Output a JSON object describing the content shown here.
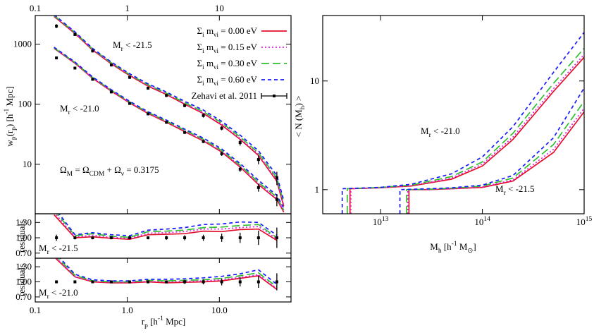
{
  "chart_data": [
    {
      "type": "line",
      "xlog": true,
      "ylog": true,
      "xlim": [
        0.1,
        60
      ],
      "ylim": [
        1.5,
        3000
      ],
      "xticks": [
        {
          "value": 0.1,
          "label": "0.1"
        },
        1,
        10
      ],
      "xticks_side": "top",
      "yticks": [
        10,
        100,
        1000
      ],
      "ylabel": "w_p(r_p) [h^{-1} Mpc]",
      "legend": "upper right",
      "x": [
        0.16,
        0.27,
        0.42,
        0.67,
        1.06,
        1.68,
        2.66,
        4.2,
        6.7,
        10.6,
        16.8,
        26.6,
        42.1,
        50
      ],
      "series": [
        {
          "name": "Σ_i m_{ν_i} = 0.00 eV",
          "color": "#e3102c",
          "dash": "solid",
          "samples": [
            {
              "values": [
                2900,
                1500,
                800,
                470,
                300,
                200,
                145,
                100,
                70,
                45,
                26,
                14,
                5.2,
                2.0
              ]
            },
            {
              "values": [
                850,
                480,
                270,
                165,
                105,
                70,
                50,
                35,
                24.5,
                16,
                9,
                4.6,
                2.6,
                1.6
              ]
            }
          ]
        },
        {
          "name": "Σ_i m_{ν_i} = 0.15 eV",
          "color": "#e020e0",
          "dash": "dotted",
          "samples": [
            {
              "values": [
                2950,
                1530,
                815,
                480,
                306,
                205,
                149,
                103,
                72,
                47,
                27,
                14.7,
                5.5,
                2.1
              ]
            },
            {
              "values": [
                860,
                487,
                274,
                168,
                107,
                71.5,
                51,
                36,
                25.2,
                16.5,
                9.3,
                4.8,
                2.7,
                1.65
              ]
            }
          ]
        },
        {
          "name": "Σ_i m_{ν_i} = 0.30 eV",
          "color": "#2fc02f",
          "dash": "dashed",
          "samples": [
            {
              "values": [
                3000,
                1560,
                830,
                490,
                312,
                210,
                153,
                106,
                75,
                49,
                28.5,
                15.5,
                5.9,
                2.3
              ]
            },
            {
              "values": [
                870,
                495,
                279,
                171,
                109,
                73,
                52.5,
                37,
                26,
                17,
                9.7,
                5,
                2.85,
                1.72
              ]
            }
          ]
        },
        {
          "name": "Σ_i m_{ν_i} = 0.60 eV",
          "color": "#1a1aff",
          "dash": "shortdash",
          "samples": [
            {
              "values": [
                3100,
                1600,
                850,
                505,
                322,
                218,
                160,
                112,
                80,
                52,
                30.5,
                16.8,
                6.5,
                2.5
              ]
            },
            {
              "values": [
                890,
                505,
                285,
                175,
                112,
                75,
                54.5,
                38.5,
                27.3,
                18,
                10.3,
                5.4,
                3.05,
                1.85
              ]
            }
          ]
        }
      ],
      "observations": {
        "name": "Zehavi et al. 2011",
        "color": "#000000",
        "x": [
          0.17,
          0.27,
          0.42,
          0.67,
          1.06,
          1.68,
          2.66,
          4.2,
          6.7,
          10.6,
          16.8,
          26.6,
          42.1
        ],
        "samples": [
          {
            "values": [
              2000,
              1450,
              770,
              450,
              280,
              185,
              140,
              95,
              65,
              40,
              23,
              12,
              6.0
            ],
            "errors": [
              150,
              80,
              40,
              25,
              15,
              10,
              8,
              6,
              5,
              3,
              2.5,
              2,
              1.5
            ]
          },
          {
            "values": [
              590,
              400,
              260,
              160,
              103,
              69,
              50,
              34,
              24,
              15,
              8.3,
              4.1,
              2.6
            ],
            "errors": [
              30,
              20,
              12,
              8,
              5,
              3.5,
              2.5,
              2,
              1.5,
              1.2,
              0.8,
              0.6,
              0.6
            ]
          }
        ]
      },
      "annotations": [
        "M_r < -21.5",
        "M_r < -21.0",
        "Ω_M = Ω_{CDM} + Ω_ν = 0.3175"
      ]
    },
    {
      "type": "line",
      "xlog": true,
      "ylog": false,
      "xlim": [
        0.1,
        60
      ],
      "ylim": [
        0.6,
        1.47
      ],
      "yticks": [
        {
          "value": 1.3,
          "label": "1.30"
        },
        {
          "value": 1.0,
          "label": "1.00"
        },
        {
          "value": 0.7,
          "label": "0.70"
        }
      ],
      "ylabel": "residuals",
      "x": [
        0.16,
        0.27,
        0.42,
        0.67,
        1.06,
        1.68,
        2.66,
        4.2,
        6.7,
        10.6,
        16.8,
        26.6,
        42.1
      ],
      "series": [
        {
          "color": "#e3102c",
          "dash": "solid",
          "samples": [
            {
              "values": [
                1.45,
                1.0,
                1.02,
                0.99,
                0.97,
                1.06,
                1.07,
                1.08,
                1.13,
                1.12,
                1.16,
                1.17,
                0.95
              ]
            }
          ]
        },
        {
          "color": "#e020e0",
          "dash": "dotted",
          "samples": [
            {
              "values": [
                1.5,
                1.02,
                1.05,
                1.01,
                0.99,
                1.09,
                1.1,
                1.12,
                1.17,
                1.17,
                1.2,
                1.22,
                0.98
              ]
            }
          ]
        },
        {
          "color": "#2fc02f",
          "dash": "dashed",
          "samples": [
            {
              "values": [
                1.55,
                1.04,
                1.08,
                1.03,
                1.01,
                1.12,
                1.13,
                1.15,
                1.2,
                1.21,
                1.24,
                1.26,
                1.0
              ]
            }
          ]
        },
        {
          "color": "#1a1aff",
          "dash": "shortdash",
          "samples": [
            {
              "values": [
                1.6,
                1.06,
                1.1,
                1.06,
                1.04,
                1.15,
                1.17,
                1.2,
                1.26,
                1.27,
                1.31,
                1.3,
                1.05
              ]
            }
          ]
        }
      ],
      "observations": {
        "color": "#000000",
        "x": [
          0.17,
          0.27,
          0.42,
          0.67,
          1.06,
          1.68,
          2.66,
          4.2,
          6.7,
          10.6,
          16.8,
          26.6,
          42.1
        ],
        "samples": [
          {
            "values": [
              1,
              1,
              1,
              1,
              1,
              1,
              1,
              1,
              1,
              1,
              1,
              1,
              1
            ],
            "errors": [
              0.06,
              0.03,
              0.03,
              0.03,
              0.03,
              0.03,
              0.04,
              0.05,
              0.06,
              0.08,
              0.1,
              0.14,
              0.2
            ]
          }
        ]
      },
      "annotations": [
        "M_r < -21.5"
      ]
    },
    {
      "type": "line",
      "xlog": true,
      "ylog": false,
      "xlim": [
        0.1,
        60
      ],
      "ylim": [
        0.6,
        1.47
      ],
      "xticks": [
        {
          "value": 0.1,
          "label": "0.1"
        },
        {
          "value": 1,
          "label": "1.0"
        },
        {
          "value": 10,
          "label": "10.0"
        }
      ],
      "xticks_side": "bottom",
      "yticks": [
        {
          "value": 1.3,
          "label": "1.30"
        },
        {
          "value": 1.0,
          "label": "1.00"
        },
        {
          "value": 0.7,
          "label": "0.70"
        }
      ],
      "ylabel": "residuals",
      "xlabel": "r_p [h^{-1} Mpc]",
      "x": [
        0.16,
        0.27,
        0.42,
        0.67,
        1.06,
        1.68,
        2.66,
        4.2,
        6.7,
        10.6,
        16.8,
        26.6,
        42.1
      ],
      "series": [
        {
          "color": "#e3102c",
          "dash": "solid",
          "samples": [
            {
              "values": [
                1.5,
                1.1,
                1.0,
                0.98,
                0.98,
                1.0,
                0.98,
                0.99,
                1.0,
                1.02,
                1.07,
                1.12,
                0.85
              ]
            }
          ]
        },
        {
          "color": "#e020e0",
          "dash": "dotted",
          "samples": [
            {
              "values": [
                1.52,
                1.11,
                1.01,
                0.99,
                0.99,
                1.01,
                1.0,
                1.01,
                1.02,
                1.04,
                1.09,
                1.14,
                0.87
              ]
            }
          ]
        },
        {
          "color": "#2fc02f",
          "dash": "dashed",
          "samples": [
            {
              "values": [
                1.55,
                1.13,
                1.02,
                1.0,
                1.0,
                1.03,
                1.02,
                1.03,
                1.04,
                1.07,
                1.12,
                1.18,
                0.9
              ]
            }
          ]
        },
        {
          "color": "#1a1aff",
          "dash": "shortdash",
          "samples": [
            {
              "values": [
                1.6,
                1.15,
                1.04,
                1.02,
                1.02,
                1.05,
                1.05,
                1.06,
                1.08,
                1.11,
                1.16,
                1.24,
                0.95
              ]
            }
          ]
        }
      ],
      "observations": {
        "color": "#000000",
        "x": [
          0.17,
          0.27,
          0.42,
          0.67,
          1.06,
          1.68,
          2.66,
          4.2,
          6.7,
          10.6,
          16.8,
          26.6,
          42.1
        ],
        "samples": [
          {
            "values": [
              1,
              1,
              1,
              1,
              1,
              1,
              1,
              1,
              1,
              1,
              1,
              1,
              1
            ],
            "errors": [
              0.03,
              0.03,
              0.02,
              0.02,
              0.02,
              0.03,
              0.03,
              0.04,
              0.05,
              0.07,
              0.09,
              0.12,
              0.17
            ]
          }
        ]
      },
      "annotations": [
        "M_r < -21.0"
      ]
    },
    {
      "type": "line",
      "xlog": true,
      "ylog": true,
      "xlim": [
        2700000000000.0,
        1000000000000000.0
      ],
      "ylim": [
        0.6,
        40
      ],
      "xticks": [
        {
          "value": 10000000000000.0,
          "label": "10^{13}"
        },
        {
          "value": 100000000000000.0,
          "label": "10^{14}"
        },
        {
          "value": 1000000000000000.0,
          "label": "10^{15}"
        }
      ],
      "xticks_side": "bottom",
      "yticks": [
        1,
        10
      ],
      "ylabel": "< N (M_h) >",
      "xlabel": "M_h [h^{-1} M_⊙]",
      "series": [
        {
          "color": "#e3102c",
          "dash": "solid",
          "samples": [
            {
              "x": [
                5000000000000.0,
                5000000000000.0,
                10000000000000.0,
                20000000000000.0,
                50000000000000.0,
                100000000000000.0,
                200000000000000.0,
                500000000000000.0,
                1000000000000000.0
              ],
              "values": [
                0.6,
                1.02,
                1.04,
                1.08,
                1.25,
                1.65,
                2.9,
                8.0,
                16.5
              ]
            },
            {
              "x": [
                19000000000000.0,
                19000000000000.0,
                30000000000000.0,
                50000000000000.0,
                100000000000000.0,
                200000000000000.0,
                500000000000000.0,
                1000000000000000.0
              ],
              "values": [
                0.6,
                1.0,
                1.0,
                1.02,
                1.05,
                1.2,
                2.2,
                5.2
              ]
            }
          ]
        },
        {
          "color": "#e020e0",
          "dash": "dotted",
          "samples": [
            {
              "x": [
                5100000000000.0,
                5100000000000.0,
                10000000000000.0,
                20000000000000.0,
                50000000000000.0,
                100000000000000.0,
                200000000000000.0,
                500000000000000.0,
                1000000000000000.0
              ],
              "values": [
                0.6,
                1.02,
                1.04,
                1.09,
                1.28,
                1.72,
                3.05,
                8.5,
                17.5
              ]
            },
            {
              "x": [
                18500000000000.0,
                18500000000000.0,
                30000000000000.0,
                50000000000000.0,
                100000000000000.0,
                200000000000000.0,
                500000000000000.0,
                1000000000000000.0
              ],
              "values": [
                0.6,
                1.0,
                1.0,
                1.02,
                1.06,
                1.23,
                2.35,
                5.6
              ]
            }
          ]
        },
        {
          "color": "#2fc02f",
          "dash": "dashed",
          "samples": [
            {
              "x": [
                4700000000000.0,
                4700000000000.0,
                10000000000000.0,
                20000000000000.0,
                50000000000000.0,
                100000000000000.0,
                200000000000000.0,
                500000000000000.0,
                1000000000000000.0
              ],
              "values": [
                0.6,
                1.02,
                1.05,
                1.1,
                1.32,
                1.8,
                3.3,
                9.5,
                20
              ]
            },
            {
              "x": [
                18000000000000.0,
                18000000000000.0,
                30000000000000.0,
                50000000000000.0,
                100000000000000.0,
                200000000000000.0,
                500000000000000.0,
                1000000000000000.0
              ],
              "values": [
                0.6,
                1.0,
                1.01,
                1.03,
                1.08,
                1.28,
                2.6,
                6.5
              ]
            }
          ]
        },
        {
          "color": "#1a1aff",
          "dash": "shortdash",
          "samples": [
            {
              "x": [
                4200000000000.0,
                4200000000000.0,
                10000000000000.0,
                20000000000000.0,
                50000000000000.0,
                100000000000000.0,
                200000000000000.0,
                500000000000000.0,
                1000000000000000.0
              ],
              "values": [
                0.6,
                1.02,
                1.05,
                1.12,
                1.4,
                2.0,
                3.8,
                12,
                28
              ]
            },
            {
              "x": [
                15500000000000.0,
                15500000000000.0,
                30000000000000.0,
                50000000000000.0,
                100000000000000.0,
                200000000000000.0,
                500000000000000.0,
                1000000000000000.0
              ],
              "values": [
                0.6,
                1.0,
                1.02,
                1.04,
                1.1,
                1.35,
                3.0,
                8.6
              ]
            }
          ]
        }
      ],
      "annotations": [
        "M_r < -21.0",
        "M_r < -21.5"
      ]
    }
  ]
}
